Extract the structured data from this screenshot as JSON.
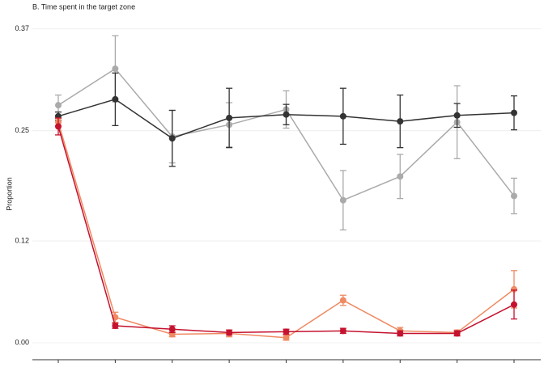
{
  "chart_data": {
    "type": "line",
    "title": "B. Time spent in the target zone",
    "y_label": "Proportion",
    "categories": [
      null,
      null,
      null,
      null,
      null,
      null,
      null,
      null,
      null
    ],
    "ylim": [
      -0.02,
      0.385
    ],
    "yticks": [
      {
        "value": 0,
        "label": "0.00"
      },
      0.12,
      0.25,
      0.37
    ],
    "grid": true,
    "series": [
      {
        "color": "#aaaaaa",
        "values": [
          0.28,
          0.323,
          0.243,
          0.257,
          0.275,
          0.168,
          0.196,
          0.26,
          0.173
        ],
        "errors": [
          0.012,
          0.039,
          0.031,
          0.026,
          0.022,
          0.035,
          0.026,
          0.043,
          0.021
        ]
      },
      {
        "color": "#333333",
        "values": [
          0.267,
          0.287,
          0.241,
          0.265,
          0.269,
          0.267,
          0.261,
          0.268,
          0.271
        ],
        "errors": [
          0.005,
          0.031,
          0.033,
          0.035,
          0.012,
          0.033,
          0.031,
          0.014,
          0.02
        ]
      },
      {
        "color": "#ef8a62",
        "values": [
          0.26,
          0.03,
          0.01,
          0.011,
          0.006,
          0.05,
          0.014,
          0.012,
          0.063
        ],
        "errors": [
          0.004,
          0.006,
          0.003,
          0.004,
          0.003,
          0.006,
          0.004,
          0.003,
          0.022
        ]
      },
      {
        "color": "#c4122f",
        "values": [
          0.255,
          0.02,
          0.016,
          0.012,
          0.013,
          0.014,
          0.011,
          0.011,
          0.045
        ],
        "errors": [
          0.01,
          0.003,
          0.004,
          0.003,
          0.003,
          0.003,
          0.003,
          0.003,
          0.017
        ]
      }
    ]
  }
}
